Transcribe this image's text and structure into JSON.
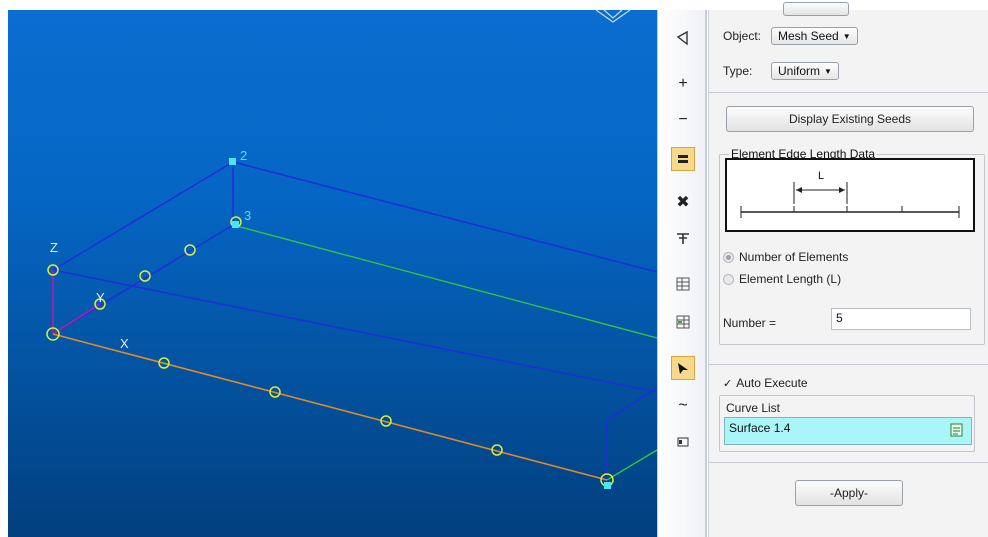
{
  "viewport": {
    "background": "#0566c4",
    "axis_labels": {
      "z": "Z",
      "y": "Y",
      "x": "X"
    },
    "node_labels": {
      "n2": "2",
      "n3": "3"
    }
  },
  "toolbar": {
    "icons": [
      "polygon-icon",
      "zoom-in-icon",
      "zoom-out-icon",
      "equal-icon",
      "crossed-tools-icon",
      "mesh-tool-icon",
      "list-grid-icon",
      "list-grid-alt-icon",
      "select-arrow-icon",
      "curve-icon",
      "box-select-icon"
    ],
    "active_color": "#f7d98b"
  },
  "panel": {
    "object_label": "Object:",
    "object_value": "Mesh Seed",
    "type_label": "Type:",
    "type_value": "Uniform",
    "display_button": "Display Existing Seeds",
    "group_title": "Element Edge Length Data",
    "diagram_label": "L",
    "radio_elements": "Number of Elements",
    "radio_length": "Element Length (L)",
    "number_label": "Number =",
    "number_value": "5",
    "auto_execute_check": "✓",
    "auto_execute_label": "Auto Execute",
    "curve_list_label": "Curve List",
    "curve_list_value": "Surface 1.4",
    "apply_button": "-Apply-",
    "list_color": "#a9f5f8"
  }
}
